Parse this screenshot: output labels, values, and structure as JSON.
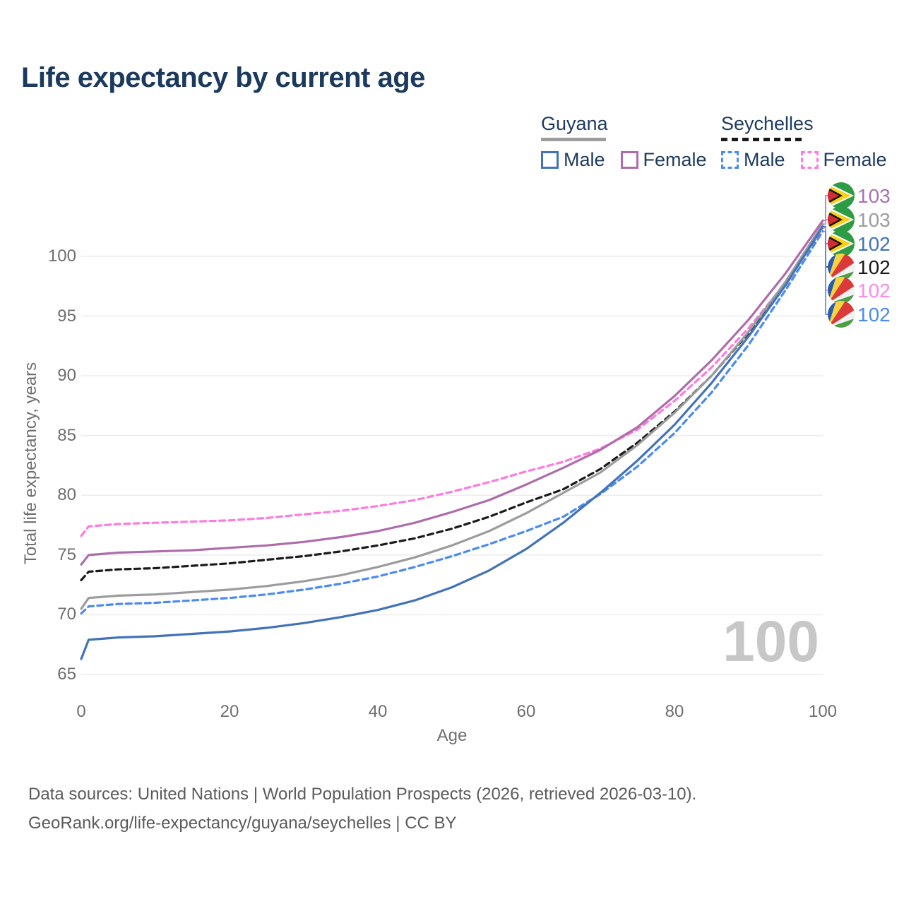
{
  "title": "Life expectancy by current age",
  "legend": {
    "guyana": {
      "label": "Guyana",
      "male": "Male",
      "female": "Female"
    },
    "seychelles": {
      "label": "Seychelles",
      "male": "Male",
      "female": "Female"
    }
  },
  "chart_data": {
    "type": "line",
    "title": "Life expectancy by current age",
    "xlabel": "Age",
    "ylabel": "Total life expectancy, years",
    "xlim": [
      0,
      100
    ],
    "ylim": [
      65,
      103
    ],
    "x_ticks": [
      0,
      20,
      40,
      60,
      80,
      100
    ],
    "y_ticks": [
      65,
      70,
      75,
      80,
      85,
      90,
      95,
      100
    ],
    "grid": "horizontal",
    "legend_position": "top-right",
    "x": [
      0,
      1,
      5,
      10,
      15,
      20,
      25,
      30,
      35,
      40,
      45,
      50,
      55,
      60,
      65,
      70,
      75,
      80,
      85,
      90,
      95,
      100
    ],
    "series": [
      {
        "name": "Guyana Male",
        "country": "Guyana",
        "sex": "Male",
        "style": "solid",
        "color": "#4273B8",
        "values": [
          66.3,
          67.9,
          68.1,
          68.2,
          68.4,
          68.6,
          68.9,
          69.3,
          69.8,
          70.4,
          71.2,
          72.3,
          73.7,
          75.5,
          77.7,
          80.2,
          82.9,
          85.9,
          89.4,
          93.3,
          97.6,
          102.5
        ]
      },
      {
        "name": "Guyana Female",
        "country": "Guyana",
        "sex": "Female",
        "style": "solid",
        "color": "#AF6CAB",
        "values": [
          74.2,
          75.0,
          75.2,
          75.3,
          75.4,
          75.6,
          75.8,
          76.1,
          76.5,
          77.0,
          77.7,
          78.6,
          79.6,
          80.9,
          82.3,
          83.8,
          85.7,
          88.3,
          91.3,
          94.7,
          98.6,
          103.0
        ]
      },
      {
        "name": "Guyana Both sexes",
        "country": "Guyana",
        "sex": "All",
        "style": "solid",
        "color": "#9C9C9C",
        "values": [
          70.5,
          71.4,
          71.6,
          71.7,
          71.9,
          72.1,
          72.4,
          72.8,
          73.3,
          74.0,
          74.8,
          75.8,
          77.0,
          78.5,
          80.2,
          81.9,
          84.2,
          86.9,
          90.0,
          93.7,
          97.9,
          102.7
        ]
      },
      {
        "name": "Seychelles Male",
        "country": "Seychelles",
        "sex": "Male",
        "style": "dashed",
        "color": "#4A8AF2",
        "values": [
          70.1,
          70.7,
          70.9,
          71.0,
          71.2,
          71.4,
          71.7,
          72.1,
          72.6,
          73.2,
          74.0,
          74.9,
          75.9,
          77.0,
          78.2,
          80.1,
          82.4,
          85.2,
          88.6,
          92.6,
          97.2,
          102.1
        ]
      },
      {
        "name": "Seychelles Female",
        "country": "Seychelles",
        "sex": "Female",
        "style": "dashed",
        "color": "#FF7ADF",
        "values": [
          76.6,
          77.4,
          77.6,
          77.7,
          77.8,
          77.9,
          78.1,
          78.4,
          78.7,
          79.1,
          79.6,
          80.3,
          81.1,
          82.0,
          82.8,
          83.9,
          85.5,
          87.9,
          90.7,
          94.0,
          97.8,
          102.4
        ]
      },
      {
        "name": "Seychelles Both sexes",
        "country": "Seychelles",
        "sex": "All",
        "style": "dashed",
        "color": "#1A1A1A",
        "values": [
          72.9,
          73.6,
          73.8,
          73.9,
          74.1,
          74.3,
          74.6,
          74.9,
          75.3,
          75.8,
          76.4,
          77.2,
          78.2,
          79.4,
          80.5,
          82.2,
          84.4,
          87.0,
          90.0,
          93.6,
          97.7,
          102.4
        ]
      }
    ],
    "end_labels": [
      {
        "value": "103",
        "color": "#A873AE",
        "flag": "guyana",
        "series_index": 1
      },
      {
        "value": "103",
        "color": "#9C9C9C",
        "flag": "guyana",
        "series_index": 2
      },
      {
        "value": "102",
        "color": "#4273B8",
        "flag": "guyana",
        "series_index": 0
      },
      {
        "value": "102",
        "color": "#1A1A1A",
        "flag": "seychelles",
        "series_index": 5
      },
      {
        "value": "102",
        "color": "#FB8BE8",
        "flag": "seychelles",
        "series_index": 4
      },
      {
        "value": "102",
        "color": "#4A8AF2",
        "flag": "seychelles",
        "series_index": 3
      }
    ]
  },
  "watermark": "100",
  "footer": {
    "line1": "Data sources: United Nations | World Population Prospects (2026, retrieved 2026-03-10).",
    "line2": "GeoRank.org/life-expectancy/guyana/seychelles | CC BY"
  }
}
